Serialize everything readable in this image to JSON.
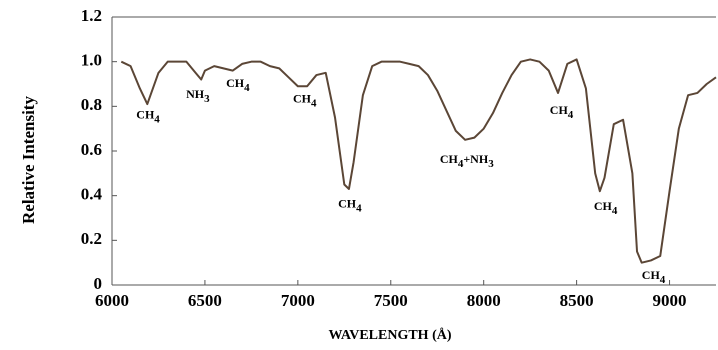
{
  "chart_data": {
    "type": "line",
    "xlabel": "WAVELENGTH (Å)",
    "ylabel": "Relative Intensity",
    "x": [
      6050,
      6100,
      6150,
      6190,
      6250,
      6300,
      6350,
      6400,
      6450,
      6480,
      6500,
      6550,
      6600,
      6650,
      6700,
      6750,
      6800,
      6850,
      6900,
      6950,
      7000,
      7050,
      7100,
      7150,
      7200,
      7250,
      7275,
      7300,
      7350,
      7400,
      7450,
      7500,
      7550,
      7600,
      7650,
      7700,
      7750,
      7800,
      7850,
      7900,
      7950,
      8000,
      8050,
      8100,
      8150,
      8200,
      8250,
      8300,
      8350,
      8400,
      8450,
      8500,
      8550,
      8600,
      8625,
      8650,
      8700,
      8750,
      8800,
      8825,
      8850,
      8900,
      8950,
      9000,
      9050,
      9100,
      9150,
      9200,
      9250
    ],
    "series": [
      {
        "color": "#5b4636",
        "values": [
          1.0,
          0.98,
          0.88,
          0.81,
          0.95,
          1.0,
          1.0,
          1.0,
          0.95,
          0.92,
          0.96,
          0.98,
          0.97,
          0.96,
          0.99,
          1.0,
          1.0,
          0.98,
          0.97,
          0.93,
          0.89,
          0.89,
          0.94,
          0.95,
          0.75,
          0.45,
          0.43,
          0.55,
          0.85,
          0.98,
          1.0,
          1.0,
          1.0,
          0.99,
          0.98,
          0.94,
          0.87,
          0.78,
          0.69,
          0.65,
          0.66,
          0.7,
          0.77,
          0.86,
          0.94,
          1.0,
          1.01,
          1.0,
          0.96,
          0.86,
          0.99,
          1.01,
          0.88,
          0.5,
          0.42,
          0.48,
          0.72,
          0.74,
          0.5,
          0.15,
          0.1,
          0.11,
          0.13,
          0.42,
          0.7,
          0.85,
          0.86,
          0.9,
          0.93
        ]
      }
    ],
    "xlim": [
      6000,
      9250
    ],
    "ylim": [
      0,
      1.2
    ],
    "xticks": [
      6000,
      6500,
      7000,
      7500,
      8000,
      8500,
      9000
    ],
    "yticks": [
      0,
      0.2,
      0.4,
      0.6,
      0.8,
      {
        "value": 1,
        "label": "1.0"
      },
      1.2
    ],
    "annotations": [
      {
        "text": [
          "CH",
          "4"
        ],
        "x": 6194,
        "y": 0.76
      },
      {
        "text": [
          "NH",
          "3"
        ],
        "x": 6462,
        "y": 0.85
      },
      {
        "text": [
          "CH",
          "4"
        ],
        "x": 6677,
        "y": 0.9
      },
      {
        "text": [
          "CH",
          "4"
        ],
        "x": 7037,
        "y": 0.83
      },
      {
        "text": [
          "CH",
          "4"
        ],
        "x": 7280,
        "y": 0.36
      },
      {
        "text": [
          "CH",
          "4",
          "+NH",
          "3"
        ],
        "x": 7909,
        "y": 0.56
      },
      {
        "text": [
          "CH",
          "4"
        ],
        "x": 8419,
        "y": 0.78
      },
      {
        "text": [
          "CH",
          "4"
        ],
        "x": 8656,
        "y": 0.35
      },
      {
        "text": [
          "CH",
          "4"
        ],
        "x": 8914,
        "y": 0.04
      }
    ]
  }
}
